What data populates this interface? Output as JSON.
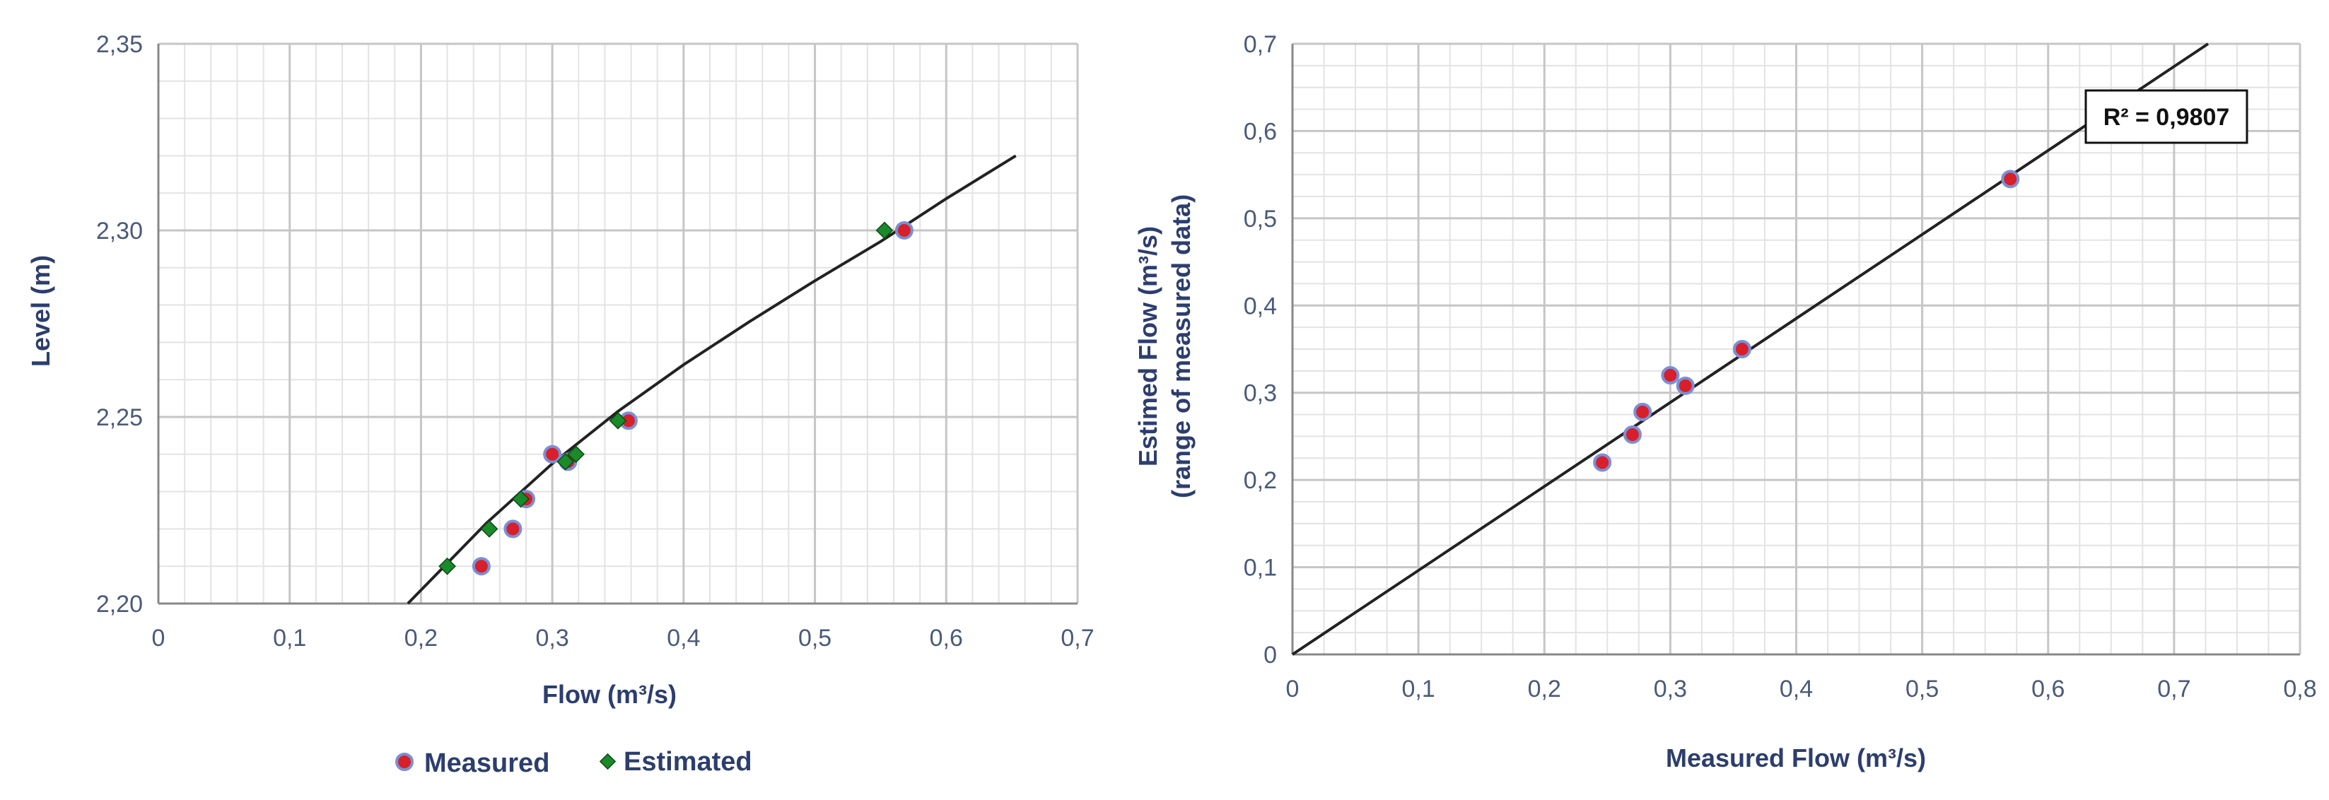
{
  "chart_data": [
    {
      "type": "scatter",
      "xlabel": "Flow (m³/s)",
      "ylabel": "Level (m)",
      "xlim": [
        0,
        0.7
      ],
      "ylim": [
        2.2,
        2.35
      ],
      "x_ticks": [
        "0",
        "0,1",
        "0,2",
        "0,3",
        "0,4",
        "0,5",
        "0,6",
        "0,7"
      ],
      "y_ticks": [
        "2,20",
        "2,25",
        "2,30",
        "2,35"
      ],
      "grid": true,
      "legend_position": "bottom",
      "series": [
        {
          "name": "Measured",
          "color": "#d7202a",
          "points": [
            [
              0.246,
              2.21
            ],
            [
              0.27,
              2.22
            ],
            [
              0.28,
              2.228
            ],
            [
              0.3,
              2.24
            ],
            [
              0.312,
              2.238
            ],
            [
              0.358,
              2.249
            ],
            [
              0.568,
              2.3
            ]
          ]
        },
        {
          "name": "Estimated",
          "color": "#1a8a2a",
          "points": [
            [
              0.22,
              2.21
            ],
            [
              0.252,
              2.22
            ],
            [
              0.276,
              2.228
            ],
            [
              0.31,
              2.238
            ],
            [
              0.318,
              2.24
            ],
            [
              0.35,
              2.249
            ],
            [
              0.553,
              2.3
            ]
          ]
        }
      ],
      "fit_curve": {
        "color": "#222222",
        "points": [
          [
            0.19,
            2.2
          ],
          [
            0.25,
            2.2216
          ],
          [
            0.3,
            2.2375
          ],
          [
            0.35,
            2.2515
          ],
          [
            0.4,
            2.264
          ],
          [
            0.45,
            2.2755
          ],
          [
            0.5,
            2.2865
          ],
          [
            0.55,
            2.297
          ],
          [
            0.6,
            2.3085
          ],
          [
            0.653,
            2.32
          ]
        ]
      }
    },
    {
      "type": "scatter",
      "xlabel": "Measured Flow (m³/s)",
      "ylabel_line1": "Estimed Flow (m³/s)",
      "ylabel_line2": "(range of measured data)",
      "xlim": [
        0,
        0.8
      ],
      "ylim": [
        0,
        0.7
      ],
      "x_ticks": [
        "0",
        "0,1",
        "0,2",
        "0,3",
        "0,4",
        "0,5",
        "0,6",
        "0,7",
        "0,8"
      ],
      "y_ticks": [
        "0",
        "0,1",
        "0,2",
        "0,3",
        "0,4",
        "0,5",
        "0,6",
        "0,7"
      ],
      "grid": true,
      "series": [
        {
          "name": "",
          "color": "#d7202a",
          "points": [
            [
              0.246,
              0.22
            ],
            [
              0.27,
              0.252
            ],
            [
              0.278,
              0.278
            ],
            [
              0.3,
              0.32
            ],
            [
              0.312,
              0.308
            ],
            [
              0.357,
              0.35
            ],
            [
              0.57,
              0.545
            ]
          ]
        }
      ],
      "trendline": {
        "color": "#222222",
        "points": [
          [
            0,
            0
          ],
          [
            0.727,
            0.7
          ]
        ]
      },
      "annotation": "R² = 0,9807"
    }
  ]
}
